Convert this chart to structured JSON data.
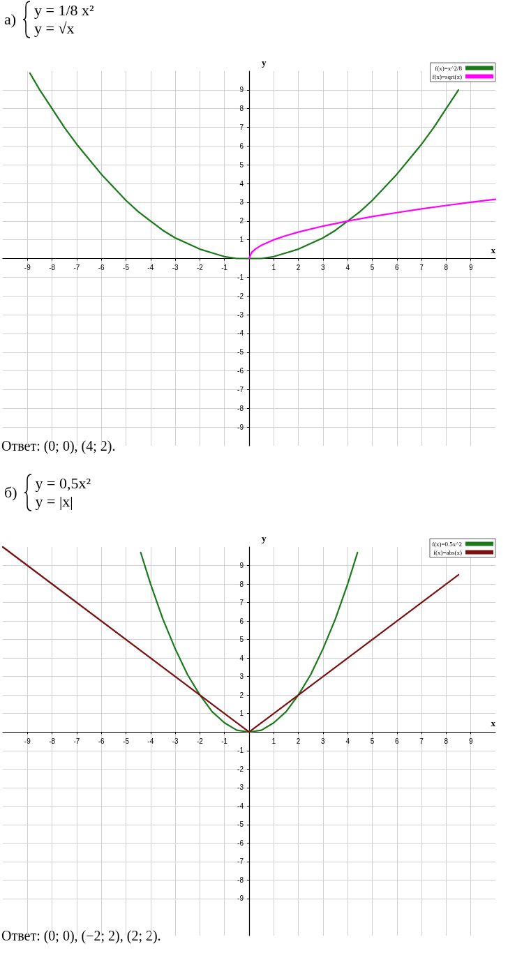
{
  "chart_data": [
    {
      "type": "line",
      "xlabel": "x",
      "ylabel": "y",
      "xlim": [
        -10,
        10
      ],
      "ylim": [
        -10,
        10
      ],
      "xticks": [
        -9,
        -8,
        -7,
        -6,
        -5,
        -4,
        -3,
        -2,
        -1,
        1,
        2,
        3,
        4,
        5,
        6,
        7,
        8,
        9
      ],
      "yticks": [
        -9,
        -8,
        -7,
        -6,
        -5,
        -4,
        -3,
        -2,
        -1,
        1,
        2,
        3,
        4,
        5,
        6,
        7,
        8,
        9
      ],
      "grid": true,
      "legend": "top right",
      "marker": "none",
      "line_style": "solid",
      "annotations": [
        "а)",
        "y = 1/8 x²",
        "y = √x",
        "Ответ: (0; 0), (4; 2)."
      ],
      "series": [
        {
          "name": "f(x)=x^2/8",
          "color": "#1a7a1a",
          "x": [
            -8.9,
            -8.5,
            -8,
            -7.5,
            -7,
            -6.5,
            -6,
            -5.5,
            -5,
            -4.5,
            -4,
            -3.5,
            -3,
            -2.5,
            -2,
            -1.5,
            -1,
            -0.5,
            0,
            0.5,
            1,
            1.5,
            2,
            2.5,
            3,
            3.5,
            4,
            4.5,
            5,
            5.5,
            6,
            6.5,
            7,
            7.5,
            8,
            8.5
          ],
          "values": [
            9.9,
            9,
            8,
            7,
            6.1,
            5.3,
            4.5,
            3.8,
            3.1,
            2.5,
            2,
            1.5,
            1.1,
            0.8,
            0.5,
            0.3,
            0.1,
            0,
            0,
            0,
            0.1,
            0.3,
            0.5,
            0.8,
            1.1,
            1.5,
            2,
            2.5,
            3.1,
            3.8,
            4.5,
            5.3,
            6.1,
            7,
            8,
            9
          ]
        },
        {
          "name": "f(x)=sqrt(x)",
          "color": "#ff00ff",
          "x": [
            0,
            0.1,
            0.25,
            0.5,
            1,
            1.5,
            2,
            3,
            4,
            5,
            6,
            7,
            8,
            9,
            10
          ],
          "values": [
            0,
            0.32,
            0.5,
            0.71,
            1,
            1.22,
            1.41,
            1.73,
            2,
            2.24,
            2.45,
            2.65,
            2.83,
            3,
            3.16
          ]
        }
      ]
    },
    {
      "type": "line",
      "xlabel": "x",
      "ylabel": "y",
      "xlim": [
        -10,
        10
      ],
      "ylim": [
        -11,
        10
      ],
      "xticks": [
        -9,
        -8,
        -7,
        -6,
        -5,
        -4,
        -3,
        -2,
        -1,
        1,
        2,
        3,
        4,
        5,
        6,
        7,
        8,
        9
      ],
      "yticks": [
        -9,
        -8,
        -7,
        -6,
        -5,
        -4,
        -3,
        -2,
        -1,
        1,
        2,
        3,
        4,
        5,
        6,
        7,
        8,
        9
      ],
      "grid": true,
      "legend": "top right",
      "marker": "none",
      "line_style": "solid",
      "annotations": [
        "б)",
        "y = 0,5x²",
        "y = |x|",
        "Ответ: (0; 0), (−2; 2), (2; 2)."
      ],
      "series": [
        {
          "name": "f(x)=0.5x^2",
          "color": "#1a7a1a",
          "x": [
            -4.4,
            -4,
            -3.5,
            -3,
            -2.5,
            -2,
            -1.5,
            -1,
            -0.5,
            0,
            0.5,
            1,
            1.5,
            2,
            2.5,
            3,
            3.5,
            4,
            4.4
          ],
          "values": [
            9.7,
            8,
            6.1,
            4.5,
            3.1,
            2,
            1.1,
            0.5,
            0.1,
            0,
            0.1,
            0.5,
            1.1,
            2,
            3.1,
            4.5,
            6.1,
            8,
            9.7
          ]
        },
        {
          "name": "f(x)=abs(x)",
          "color": "#7a1010",
          "x": [
            -10,
            0,
            8.5
          ],
          "values": [
            10,
            0,
            8.5
          ]
        }
      ]
    }
  ]
}
